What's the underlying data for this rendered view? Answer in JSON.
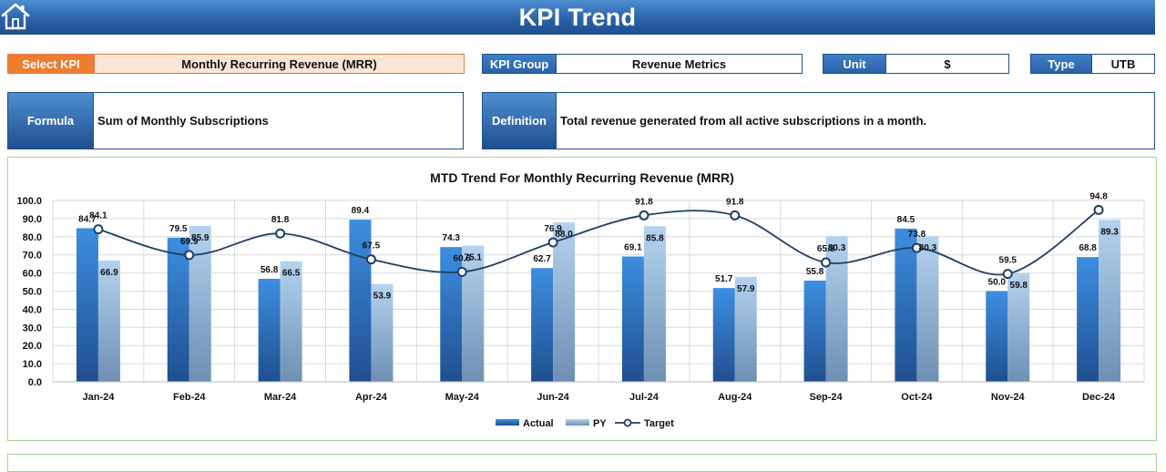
{
  "header": {
    "title": "KPI Trend",
    "home_icon": "home-icon"
  },
  "selectors": {
    "kpi": {
      "label": "Select KPI",
      "value": "Monthly Recurring Revenue (MRR)"
    },
    "group": {
      "label": "KPI Group",
      "value": "Revenue Metrics"
    },
    "unit": {
      "label": "Unit",
      "value": "$"
    },
    "type": {
      "label": "Type",
      "value": "UTB"
    }
  },
  "info": {
    "formula": {
      "label": "Formula",
      "value": "Sum of Monthly Subscriptions"
    },
    "definition": {
      "label": "Definition",
      "value": "Total revenue generated from all active subscriptions in a month."
    }
  },
  "colors": {
    "header_blue": "#2a62a8",
    "accent_orange": "#ed7d31",
    "actual_blue": "#2e75b6",
    "py_light_blue": "#9dc3e6",
    "target_line": "#1f3f66",
    "panel_border_green": "#a9d18e"
  },
  "chart_data": {
    "type": "bar",
    "title": "MTD Trend For Monthly Recurring Revenue (MRR)",
    "categories": [
      "Jan-24",
      "Feb-24",
      "Mar-24",
      "Apr-24",
      "May-24",
      "Jun-24",
      "Jul-24",
      "Aug-24",
      "Sep-24",
      "Oct-24",
      "Nov-24",
      "Dec-24"
    ],
    "series": [
      {
        "name": "Actual",
        "kind": "bar",
        "values": [
          84.7,
          79.5,
          56.8,
          89.4,
          74.3,
          62.7,
          69.1,
          51.7,
          55.8,
          84.5,
          50.0,
          68.8
        ]
      },
      {
        "name": "PY",
        "kind": "bar",
        "values": [
          66.9,
          85.9,
          66.5,
          53.9,
          75.1,
          88.0,
          85.8,
          57.9,
          80.3,
          80.3,
          59.8,
          89.3
        ]
      },
      {
        "name": "Target",
        "kind": "line",
        "values": [
          84.1,
          69.9,
          81.8,
          67.5,
          60.6,
          76.9,
          91.8,
          91.8,
          65.8,
          73.8,
          59.5,
          94.8
        ]
      }
    ],
    "ylim": [
      0,
      100
    ],
    "yticks": [
      "0.0",
      "10.0",
      "20.0",
      "30.0",
      "40.0",
      "50.0",
      "60.0",
      "70.0",
      "80.0",
      "90.0",
      "100.0"
    ],
    "grid": true,
    "legend": "bottom",
    "xlabel": "",
    "ylabel": ""
  }
}
